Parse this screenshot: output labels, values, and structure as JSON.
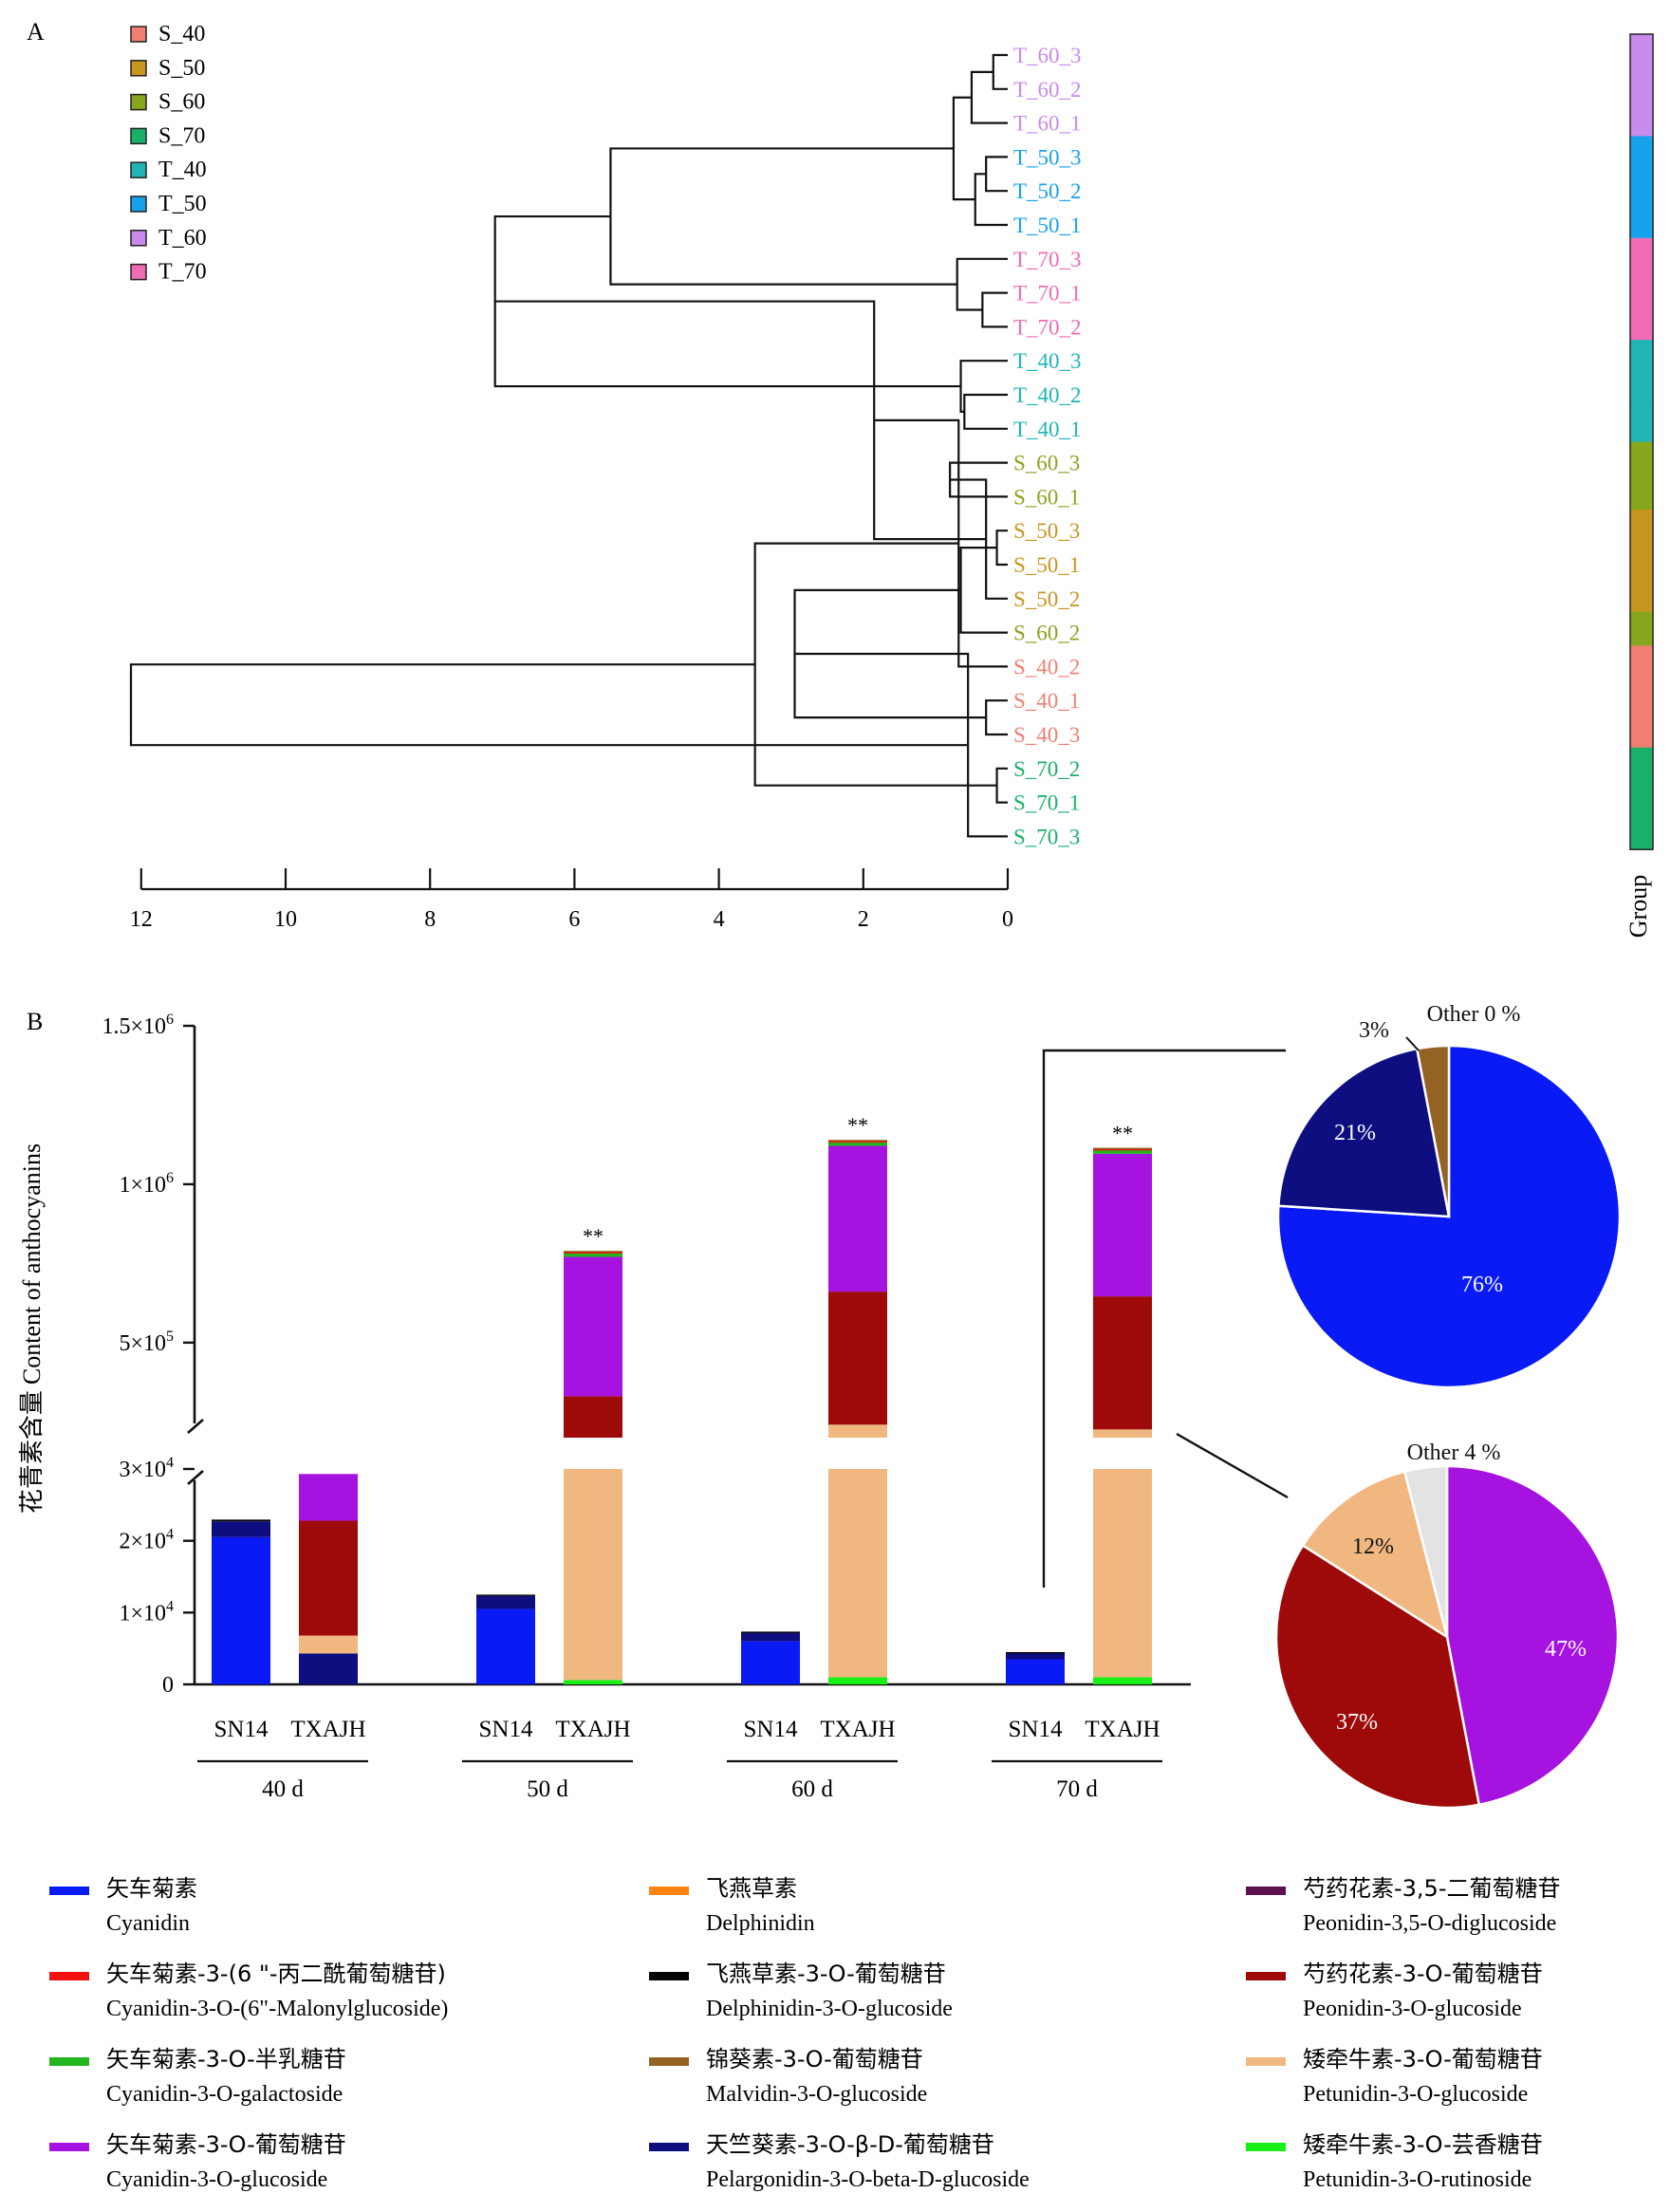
{
  "panel_a": {
    "label": "A",
    "group_title": "Group",
    "legend": [
      {
        "name": "S_40",
        "color": "#F07F72"
      },
      {
        "name": "S_50",
        "color": "#C8951F"
      },
      {
        "name": "S_60",
        "color": "#87A61E"
      },
      {
        "name": "S_70",
        "color": "#19B06A"
      },
      {
        "name": "T_40",
        "color": "#1FB5B5"
      },
      {
        "name": "T_50",
        "color": "#16A3EC"
      },
      {
        "name": "T_60",
        "color": "#C88BEB"
      },
      {
        "name": "T_70",
        "color": "#F06CB5"
      }
    ],
    "leaves": [
      {
        "name": "T_60_3",
        "group": "T_60"
      },
      {
        "name": "T_60_2",
        "group": "T_60"
      },
      {
        "name": "T_60_1",
        "group": "T_60"
      },
      {
        "name": "T_50_3",
        "group": "T_50"
      },
      {
        "name": "T_50_2",
        "group": "T_50"
      },
      {
        "name": "T_50_1",
        "group": "T_50"
      },
      {
        "name": "T_70_3",
        "group": "T_70"
      },
      {
        "name": "T_70_1",
        "group": "T_70"
      },
      {
        "name": "T_70_2",
        "group": "T_70"
      },
      {
        "name": "T_40_3",
        "group": "T_40"
      },
      {
        "name": "T_40_2",
        "group": "T_40"
      },
      {
        "name": "T_40_1",
        "group": "T_40"
      },
      {
        "name": "S_60_3",
        "group": "S_60"
      },
      {
        "name": "S_60_1",
        "group": "S_60"
      },
      {
        "name": "S_50_3",
        "group": "S_50"
      },
      {
        "name": "S_50_1",
        "group": "S_50"
      },
      {
        "name": "S_50_2",
        "group": "S_50"
      },
      {
        "name": "S_60_2",
        "group": "S_60"
      },
      {
        "name": "S_40_2",
        "group": "S_40"
      },
      {
        "name": "S_40_1",
        "group": "S_40"
      },
      {
        "name": "S_40_3",
        "group": "S_40"
      },
      {
        "name": "S_70_2",
        "group": "S_70"
      },
      {
        "name": "S_70_1",
        "group": "S_70"
      },
      {
        "name": "S_70_3",
        "group": "S_70"
      }
    ],
    "merges": [
      {
        "a": 0,
        "b": 1,
        "h": 0.2
      },
      {
        "a": 24,
        "b": 2,
        "h": 0.5
      },
      {
        "a": 3,
        "b": 4,
        "h": 0.3
      },
      {
        "a": 26,
        "b": 5,
        "h": 0.45
      },
      {
        "a": 25,
        "b": 27,
        "h": 0.75
      },
      {
        "a": 7,
        "b": 8,
        "h": 0.35
      },
      {
        "a": 6,
        "b": 29,
        "h": 0.7
      },
      {
        "a": 28,
        "b": 30,
        "h": 5.5
      },
      {
        "a": 10,
        "b": 11,
        "h": 0.6
      },
      {
        "a": 9,
        "b": 32,
        "h": 0.65
      },
      {
        "a": 31,
        "b": 33,
        "h": 7.1
      },
      {
        "a": 12,
        "b": 13,
        "h": 0.8
      },
      {
        "a": 14,
        "b": 15,
        "h": 0.15
      },
      {
        "a": 35,
        "b": 16,
        "h": 0.3
      },
      {
        "a": 36,
        "b": 17,
        "h": 0.65
      },
      {
        "a": 34,
        "b": 37,
        "h": 1.85
      },
      {
        "a": 19,
        "b": 20,
        "h": 0.3
      },
      {
        "a": 18,
        "b": 39,
        "h": 0.68
      },
      {
        "a": 38,
        "b": 40,
        "h": 2.95
      },
      {
        "a": 21,
        "b": 22,
        "h": 0.15
      },
      {
        "a": 42,
        "b": 23,
        "h": 0.55
      },
      {
        "a": 41,
        "b": 43,
        "h": 3.5
      },
      {
        "a": 34,
        "b": 44,
        "h": 0
      },
      {
        "a": 44,
        "b": 44,
        "h": 0
      }
    ],
    "x_ticks": [
      12,
      10,
      8,
      6,
      4,
      2,
      0
    ]
  },
  "panel_b": {
    "label": "B",
    "y_axis_label_cn": "花青素含量",
    "y_axis_label_en": "Content of anthocyanins",
    "lower_ticks": [
      "0",
      "1×10",
      "2×10",
      "3×10"
    ],
    "lower_tick_exp": "4",
    "upper_ticks": [
      "5×10",
      "1×10",
      "1.5×10"
    ],
    "upper_tick_exps": [
      "5",
      "6",
      "6"
    ],
    "sig_mark": "**",
    "pie_labels": {
      "top": {
        "other": "Other 0 %",
        "p1": "3%",
        "p2": "21%",
        "p3": "76%"
      },
      "bottom": {
        "other": "Other 4 %",
        "p1": "12%",
        "p2": "37%",
        "p3": "47%"
      }
    },
    "legend": [
      {
        "cn": "矢车菊素",
        "en": "Cyanidin",
        "color": "#0A1AF5"
      },
      {
        "cn": "矢车菊素-3-(6 \"-丙二酰葡萄糖苷)",
        "en": "Cyanidin-3-O-(6\"-Malonylglucoside)",
        "color": "#F21010"
      },
      {
        "cn": "矢车菊素-3-O-半乳糖苷",
        "en": "Cyanidin-3-O-galactoside",
        "color": "#22B51E"
      },
      {
        "cn": "矢车菊素-3-O-葡萄糖苷",
        "en": "Cyanidin-3-O-glucoside",
        "color": "#A612E0"
      },
      {
        "cn": "飞燕草素",
        "en": "Delphinidin",
        "color": "#FF8412"
      },
      {
        "cn": "飞燕草素-3-O-葡萄糖苷",
        "en": "Delphinidin-3-O-glucoside",
        "color": "#050505"
      },
      {
        "cn": "锦葵素-3-O-葡萄糖苷",
        "en": "Malvidin-3-O-glucoside",
        "color": "#946223"
      },
      {
        "cn": "天竺葵素-3-O-β-D-葡萄糖苷",
        "en": "Pelargonidin-3-O-beta-D-glucoside",
        "color": "#0E0E80"
      },
      {
        "cn": "芍药花素-3,5-二葡萄糖苷",
        "en": "Peonidin-3,5-O-diglucoside",
        "color": "#5E0F4E"
      },
      {
        "cn": "芍药花素-3-O-葡萄糖苷",
        "en": "Peonidin-3-O-glucoside",
        "color": "#9E0A0A"
      },
      {
        "cn": "矮牵牛素-3-O-葡萄糖苷",
        "en": "Petunidin-3-O-glucoside",
        "color": "#F0B880"
      },
      {
        "cn": "矮牵牛素-3-O-芸香糖苷",
        "en": "Petunidin-3-O-rutinoside",
        "color": "#18F018"
      }
    ]
  },
  "chart_data": [
    {
      "type": "dendrogram",
      "xlim": [
        12,
        0
      ],
      "x_ticks": [
        12,
        10,
        8,
        6,
        4,
        2,
        0
      ],
      "leaf_order": [
        "T_60_3",
        "T_60_2",
        "T_60_1",
        "T_50_3",
        "T_50_2",
        "T_50_1",
        "T_70_3",
        "T_70_1",
        "T_70_2",
        "T_40_3",
        "T_40_2",
        "T_40_1",
        "S_60_3",
        "S_60_1",
        "S_50_3",
        "S_50_1",
        "S_50_2",
        "S_60_2",
        "S_40_2",
        "S_40_1",
        "S_40_3",
        "S_70_2",
        "S_70_1",
        "S_70_3"
      ],
      "groups": [
        "S_40",
        "S_50",
        "S_60",
        "S_70",
        "T_40",
        "T_50",
        "T_60",
        "T_70"
      ],
      "root_height": 12.7
    },
    {
      "type": "bar",
      "stacked": true,
      "categories": [
        "40 d",
        "50 d",
        "60 d",
        "70 d"
      ],
      "subcategories": [
        "SN14",
        "TXAJH"
      ],
      "y_break": [
        30000,
        200000
      ],
      "ylim_lower": [
        0,
        30000
      ],
      "ylim_upper": [
        200000,
        1500000
      ],
      "series": [
        {
          "name": "Cyanidin",
          "SN14": [
            20500,
            10500,
            6000,
            3500
          ],
          "TXAJH": [
            0,
            0,
            0,
            0
          ]
        },
        {
          "name": "Pelargonidin-3-O-beta-D-glucoside",
          "SN14": [
            2200,
            1800,
            1200,
            900
          ],
          "TXAJH": [
            4300,
            0,
            0,
            0
          ]
        },
        {
          "name": "Delphinidin-3-O-glucoside",
          "SN14": [
            250,
            200,
            150,
            100
          ],
          "TXAJH": [
            0,
            0,
            0,
            0
          ]
        },
        {
          "name": "Petunidin-3-O-rutinoside",
          "SN14": [
            0,
            0,
            0,
            0
          ],
          "TXAJH": [
            0,
            600,
            1000,
            1000
          ]
        },
        {
          "name": "Petunidin-3-O-glucoside",
          "SN14": [
            0,
            0,
            0,
            0
          ],
          "TXAJH": [
            2500,
            30000,
            240000,
            225000
          ]
        },
        {
          "name": "Peonidin-3-O-glucoside",
          "SN14": [
            0,
            0,
            0,
            0
          ],
          "TXAJH": [
            16000,
            300000,
            420000,
            420000
          ]
        },
        {
          "name": "Cyanidin-3-O-glucoside",
          "SN14": [
            0,
            0,
            0,
            0
          ],
          "TXAJH": [
            6500,
            440000,
            460000,
            450000
          ]
        },
        {
          "name": "Cyanidin-3-O-galactoside",
          "SN14": [
            0,
            0,
            0,
            0
          ],
          "TXAJH": [
            0,
            12000,
            12000,
            12000
          ]
        },
        {
          "name": "Cyanidin-3-O-(6\"-Malonylglucoside)",
          "SN14": [
            0,
            0,
            0,
            0
          ],
          "TXAJH": [
            0,
            3000,
            3000,
            3000
          ]
        },
        {
          "name": "Malvidin-3-O-glucoside",
          "SN14": [
            0,
            0,
            0,
            0
          ],
          "TXAJH": [
            0,
            4000,
            4000,
            4000
          ]
        }
      ],
      "significance": {
        "50 d": "**",
        "60 d": "**",
        "70 d": "**"
      }
    },
    {
      "type": "pie",
      "slices": [
        {
          "label": "Cyanidin",
          "value": 76
        },
        {
          "label": "Pelargonidin-3-O-beta-D-glucoside",
          "value": 21
        },
        {
          "label": "Malvidin-3-O-glucoside",
          "value": 3
        },
        {
          "label": "Other",
          "value": 0
        }
      ]
    },
    {
      "type": "pie",
      "slices": [
        {
          "label": "Cyanidin-3-O-glucoside",
          "value": 47
        },
        {
          "label": "Peonidin-3-O-glucoside",
          "value": 37
        },
        {
          "label": "Petunidin-3-O-glucoside",
          "value": 12
        },
        {
          "label": "Other",
          "value": 4
        }
      ]
    }
  ]
}
